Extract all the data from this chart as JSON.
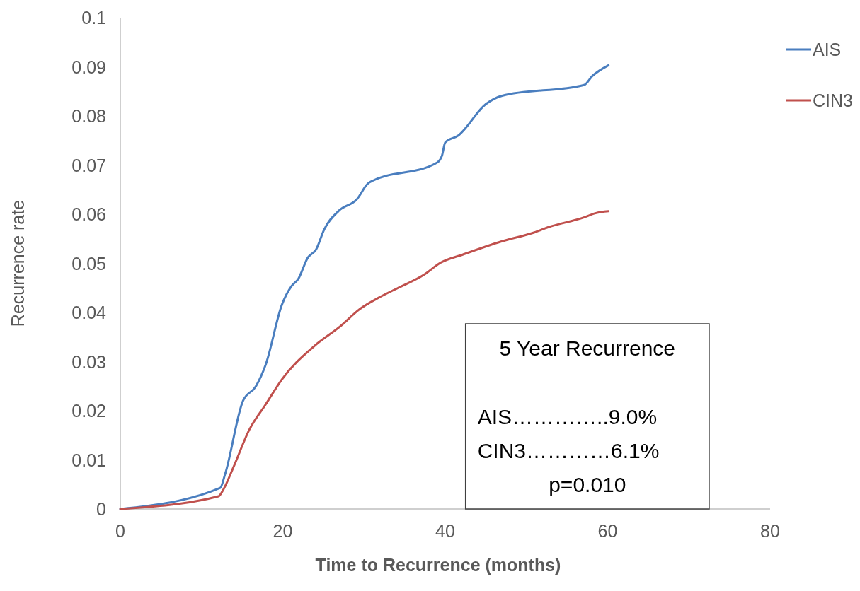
{
  "chart_data": {
    "type": "line",
    "xlabel": "Time to Recurrence (months)",
    "ylabel": "Recurrence rate",
    "xlim": [
      0,
      80
    ],
    "xticks": [
      0,
      20,
      40,
      60,
      80
    ],
    "ylim": [
      0,
      0.1
    ],
    "yticks": [
      0,
      0.01,
      0.02,
      0.03,
      0.04,
      0.05,
      0.06,
      0.07,
      0.08,
      0.09,
      0.1
    ],
    "grid": false,
    "legend": "top right",
    "marker": "none",
    "line_style": "solid",
    "series": [
      {
        "name": "AIS",
        "color": "#4a7ebf",
        "x": [
          0,
          12.3,
          12.9,
          15.1,
          16.7,
          17.9,
          19.9,
          21.1,
          21.9,
          23.1,
          24.1,
          25.1,
          26.9,
          29.1,
          30.6,
          39.0,
          39.6,
          40.0,
          41.6,
          45.0,
          47.0,
          57.1,
          58.1,
          60.1
        ],
        "values": [
          0,
          0.0043,
          0.0071,
          0.022,
          0.025,
          0.0294,
          0.0416,
          0.0454,
          0.0468,
          0.0512,
          0.0528,
          0.0569,
          0.0607,
          0.063,
          0.0664,
          0.0705,
          0.0719,
          0.0746,
          0.076,
          0.0824,
          0.0841,
          0.0863,
          0.0881,
          0.0903
        ]
      },
      {
        "name": "CIN3",
        "color": "#c0504d",
        "x": [
          0,
          12.1,
          12.7,
          13.9,
          15.9,
          17.9,
          19.9,
          23.9,
          27.1,
          29.4,
          31.8,
          34.2,
          37.4,
          39.4,
          42.2,
          47.0,
          51.0,
          52.6,
          57.0,
          58.5,
          60.1
        ],
        "values": [
          0,
          0.0026,
          0.004,
          0.0084,
          0.0162,
          0.0213,
          0.0264,
          0.0332,
          0.0372,
          0.0406,
          0.043,
          0.045,
          0.0477,
          0.0501,
          0.0518,
          0.0545,
          0.0563,
          0.0573,
          0.0593,
          0.0602,
          0.0606
        ]
      }
    ],
    "annotations": [
      "5 Year Recurrence",
      "AIS…………..9.0%",
      "CIN3…………6.1%",
      "p=0.010"
    ]
  }
}
